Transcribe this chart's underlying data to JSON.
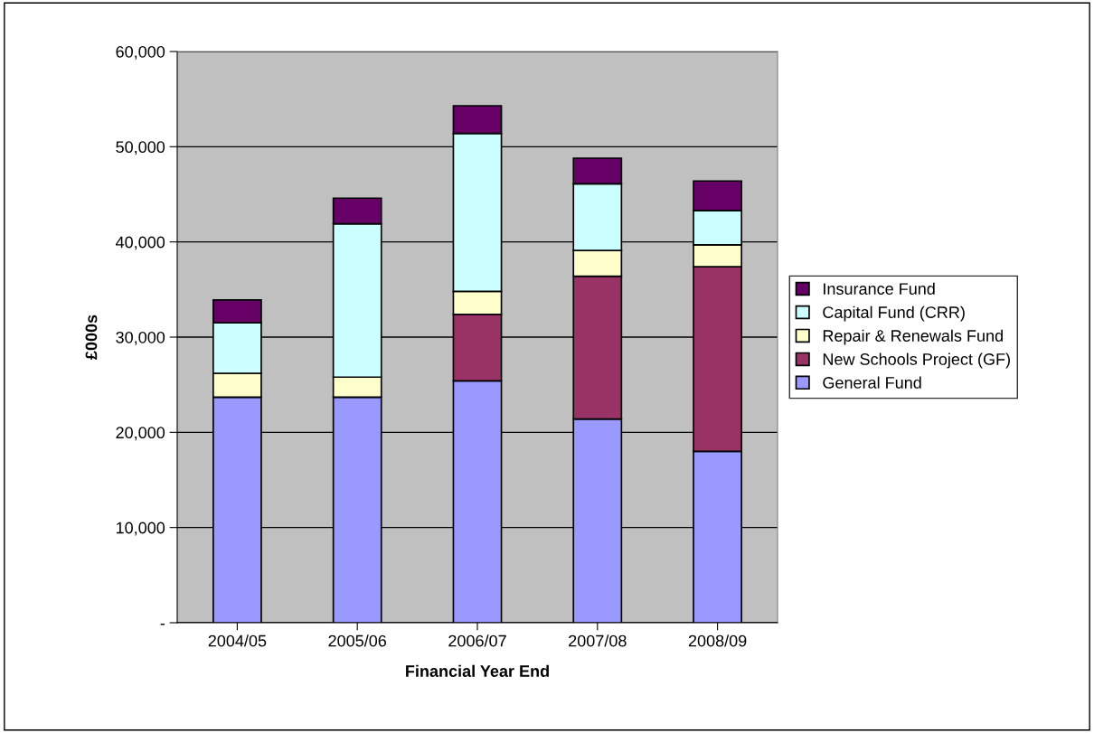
{
  "chart_data": {
    "type": "bar",
    "stacked": true,
    "xlabel": "Financial Year End",
    "ylabel": "£000s",
    "categories": [
      "2004/05",
      "2005/06",
      "2006/07",
      "2007/08",
      "2008/09"
    ],
    "series": [
      {
        "name": "General Fund",
        "color": "#9999ff",
        "values": [
          23700,
          23700,
          25400,
          21400,
          18000
        ]
      },
      {
        "name": "New Schools Project (GF)",
        "color": "#993366",
        "values": [
          0,
          0,
          7000,
          15000,
          19400
        ]
      },
      {
        "name": "Repair & Renewals Fund",
        "color": "#ffffcc",
        "values": [
          2500,
          2100,
          2400,
          2700,
          2300
        ]
      },
      {
        "name": "Capital Fund (CRR)",
        "color": "#ccffff",
        "values": [
          5300,
          16100,
          16600,
          7000,
          3600
        ]
      },
      {
        "name": "Insurance Fund",
        "color": "#660066",
        "values": [
          2400,
          2700,
          2900,
          2700,
          3100
        ]
      }
    ],
    "ylim": [
      0,
      60000
    ],
    "yticks": [
      {
        "value": 0,
        "label": "-"
      },
      {
        "value": 10000,
        "label": "10,000"
      },
      {
        "value": 20000,
        "label": "20,000"
      },
      {
        "value": 30000,
        "label": "30,000"
      },
      {
        "value": 40000,
        "label": "40,000"
      },
      {
        "value": 50000,
        "label": "50,000"
      },
      {
        "value": 60000,
        "label": "60,000"
      }
    ],
    "grid": "y",
    "legend": "right"
  }
}
